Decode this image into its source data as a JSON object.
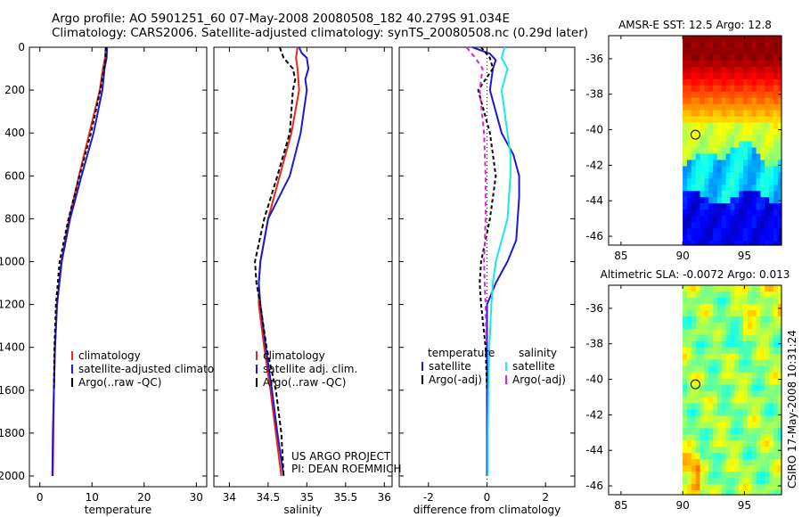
{
  "header": {
    "line1": "Argo profile: AO 5901251_60 07-May-2008 20080508_182 40.279S 91.034E",
    "line2": "Climatology: CARS2006. Satellite-adjusted climatology: synTS_20080508.nc (0.29d later)"
  },
  "footer": {
    "project": "US ARGO PROJECT",
    "pi": "PI: DEAN ROEMMICH",
    "stamp": "CSIRO 17-May-2008 10:31:24"
  },
  "colors": {
    "red": "#e8291c",
    "blue": "#1a1ad6",
    "black": "#000000",
    "cyan": "#1ee6e6",
    "magenta": "#e01ee0"
  },
  "chart_data": [
    {
      "type": "line",
      "id": "temperature",
      "xlabel": "temperature",
      "xlim": [
        -2,
        32
      ],
      "ylim": [
        2050,
        0
      ],
      "xticks": [
        0,
        10,
        20,
        30
      ],
      "yticks": [
        0,
        200,
        400,
        600,
        800,
        1000,
        1200,
        1400,
        1600,
        1800,
        2000
      ],
      "series": [
        {
          "name": "climatology",
          "color": "#e8291c",
          "dash": "",
          "depth": [
            0,
            50,
            100,
            200,
            400,
            600,
            800,
            1000,
            1200,
            1400,
            1600,
            1800,
            2000
          ],
          "values": [
            12.6,
            12.5,
            12.1,
            11.5,
            9.5,
            7.5,
            5.6,
            4.1,
            3.3,
            2.9,
            2.7,
            2.6,
            2.5
          ]
        },
        {
          "name": "satellite-adjusted climatology",
          "color": "#1a1ad6",
          "dash": "",
          "depth": [
            0,
            50,
            100,
            200,
            400,
            600,
            800,
            1000,
            1200,
            1400,
            1600,
            1800,
            2000
          ],
          "values": [
            12.9,
            12.8,
            12.4,
            12.0,
            10.3,
            8.0,
            5.8,
            4.2,
            3.3,
            2.9,
            2.7,
            2.5,
            2.4
          ]
        },
        {
          "name": "Argo(..raw -QC)",
          "color": "#000000",
          "dash": "4,3",
          "depth": [
            0,
            50,
            100,
            200,
            400,
            600,
            800,
            1000,
            1200,
            1400,
            1600
          ],
          "values": [
            12.7,
            12.6,
            12.3,
            11.6,
            9.8,
            7.6,
            5.5,
            3.8,
            3.1,
            2.8,
            2.7
          ]
        }
      ],
      "legend": [
        "climatology",
        "satellite-adjusted climatology",
        "Argo(..raw -QC)"
      ]
    },
    {
      "type": "line",
      "id": "salinity",
      "xlabel": "salinity",
      "xlim": [
        33.8,
        36.1
      ],
      "ylim": [
        2050,
        0
      ],
      "xticks": [
        34,
        34.5,
        35,
        35.5,
        36
      ],
      "xticklabels": [
        "34",
        "34.5",
        "35",
        "35.5",
        "36"
      ],
      "series": [
        {
          "name": "climatology",
          "color": "#e8291c",
          "dash": "",
          "depth": [
            0,
            50,
            100,
            200,
            400,
            600,
            800,
            1000,
            1100,
            1200,
            1400,
            1600,
            1800,
            2000
          ],
          "values": [
            34.88,
            34.86,
            34.88,
            34.9,
            34.8,
            34.65,
            34.5,
            34.4,
            34.38,
            34.38,
            34.45,
            34.53,
            34.6,
            34.67
          ]
        },
        {
          "name": "satellite adj. clim.",
          "color": "#1a1ad6",
          "dash": "",
          "depth": [
            0,
            25,
            50,
            100,
            150,
            200,
            400,
            600,
            800,
            1000,
            1100,
            1200,
            1400,
            1600,
            1800,
            2000
          ],
          "values": [
            34.9,
            34.93,
            35.0,
            35.02,
            34.98,
            35.0,
            34.92,
            34.78,
            34.5,
            34.4,
            34.38,
            34.4,
            34.47,
            34.55,
            34.62,
            34.7
          ]
        },
        {
          "name": "Argo(..raw -QC)",
          "color": "#000000",
          "dash": "5,3",
          "depth": [
            0,
            50,
            100,
            150,
            200,
            400,
            600,
            800,
            1000,
            1100,
            1200,
            1400,
            1600,
            1800,
            2000
          ],
          "values": [
            34.65,
            34.7,
            34.82,
            34.85,
            34.82,
            34.78,
            34.62,
            34.45,
            34.33,
            34.35,
            34.4,
            34.48,
            34.6,
            34.67,
            34.7
          ]
        }
      ],
      "legend": [
        "climatology",
        "satellite adj. clim.",
        "Argo(..raw -QC)"
      ]
    },
    {
      "type": "line",
      "id": "difference",
      "xlabel": "difference from climatology",
      "xlim": [
        -3,
        3
      ],
      "ylim": [
        2050,
        0
      ],
      "xticks": [
        -2,
        0,
        2
      ],
      "series": [
        {
          "name": "temperature satellite",
          "color": "#1a1ad6",
          "dash": "",
          "depth": [
            0,
            30,
            60,
            100,
            200,
            400,
            500,
            600,
            700,
            900,
            1000,
            1050,
            1100,
            1200,
            1400,
            1600,
            1800,
            2000
          ],
          "values": [
            -0.5,
            0.1,
            0.3,
            0.2,
            0.1,
            0.5,
            0.9,
            1.1,
            1.1,
            1.0,
            0.7,
            0.5,
            0.3,
            0.0,
            0.0,
            0.0,
            0.0,
            0.0
          ]
        },
        {
          "name": "temperature Argo(-adj)",
          "color": "#000000",
          "dash": "4,3",
          "depth": [
            0,
            50,
            100,
            200,
            400,
            600,
            800,
            1000,
            1100,
            1200,
            1400,
            1600
          ],
          "values": [
            -0.2,
            0.1,
            0.2,
            -0.3,
            0.1,
            0.3,
            0.1,
            -0.2,
            -0.25,
            -0.2,
            -0.05,
            0.0
          ]
        },
        {
          "name": "salinity satellite",
          "color": "#1ee6e6",
          "dash": "",
          "depth": [
            0,
            50,
            100,
            200,
            400,
            500,
            600,
            800,
            1000,
            1100,
            1200,
            1400,
            1600,
            1800,
            2000
          ],
          "values": [
            0.6,
            0.5,
            0.7,
            0.5,
            0.7,
            0.8,
            0.8,
            0.7,
            0.3,
            0.2,
            0.15,
            0.08,
            0.05,
            0.03,
            0.03
          ]
        },
        {
          "name": "salinity Argo(-adj)",
          "color": "#e01ee0",
          "dash": "5,4",
          "depth": [
            0,
            50,
            100,
            200,
            400,
            600,
            800,
            1000,
            1100,
            1200,
            1400
          ],
          "values": [
            -0.7,
            -0.4,
            -0.15,
            -0.25,
            -0.1,
            -0.05,
            -0.05,
            -0.1,
            -0.08,
            -0.05,
            -0.02
          ]
        }
      ],
      "legend_headers": [
        "temperature",
        "salinity"
      ],
      "legend_left": [
        "satellite",
        "Argo(-adj)"
      ],
      "legend_right": [
        "satellite",
        "Argo(-adj)"
      ]
    },
    {
      "type": "heatmap",
      "id": "sst-map",
      "title": "AMSR-E SST: 12.5 Argo: 12.8",
      "xlim": [
        84,
        98
      ],
      "ylim": [
        -46.5,
        -34.7
      ],
      "xticks": [
        85,
        90,
        95
      ],
      "yticks": [
        -36,
        -38,
        -40,
        -42,
        -44,
        -46
      ],
      "data_start_lon": 90,
      "marker": {
        "lon": 91.03,
        "lat": -40.28
      }
    },
    {
      "type": "heatmap",
      "id": "sla-map",
      "title": "Altimetric SLA: -0.0072 Argo: 0.013",
      "xlim": [
        84,
        98
      ],
      "ylim": [
        -46.5,
        -34.7
      ],
      "xticks": [
        85,
        90,
        95
      ],
      "yticks": [
        -36,
        -38,
        -40,
        -42,
        -44,
        -46
      ],
      "data_start_lon": 90,
      "marker": {
        "lon": 91.03,
        "lat": -40.28
      }
    }
  ]
}
